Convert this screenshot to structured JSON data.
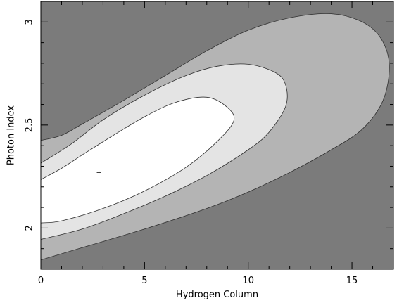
{
  "chart_data": {
    "type": "contour",
    "title": "",
    "xlabel": "Hydrogen Column",
    "ylabel": "Photon Index",
    "xlim": [
      0,
      17
    ],
    "ylim": [
      1.8,
      3.1
    ],
    "x_ticks": [
      0,
      5,
      10,
      15
    ],
    "y_ticks": [
      2,
      2.5,
      3
    ],
    "x_tick_labels": [
      "0",
      "5",
      "10",
      "15"
    ],
    "y_tick_labels": [
      "2",
      "2.5",
      "3"
    ],
    "grid": false,
    "best_fit": {
      "x": 2.8,
      "y": 2.27
    },
    "contours": [
      {
        "level": "outer",
        "fill": "#b4b4b4",
        "points": [
          [
            0,
            1.845
          ],
          [
            2,
            1.905
          ],
          [
            5,
            1.995
          ],
          [
            8,
            2.095
          ],
          [
            10,
            2.175
          ],
          [
            12,
            2.27
          ],
          [
            14,
            2.38
          ],
          [
            15.5,
            2.48
          ],
          [
            16.5,
            2.62
          ],
          [
            16.8,
            2.79
          ],
          [
            16.4,
            2.92
          ],
          [
            15.5,
            3.0
          ],
          [
            14,
            3.04
          ],
          [
            12,
            3.02
          ],
          [
            10,
            2.96
          ],
          [
            8,
            2.86
          ],
          [
            6,
            2.74
          ],
          [
            4,
            2.62
          ],
          [
            2,
            2.505
          ],
          [
            1,
            2.45
          ],
          [
            0,
            2.425
          ]
        ]
      },
      {
        "level": "middle",
        "fill": "#e4e4e4",
        "points": [
          [
            0,
            1.945
          ],
          [
            2,
            1.995
          ],
          [
            4,
            2.07
          ],
          [
            6,
            2.155
          ],
          [
            8,
            2.255
          ],
          [
            10,
            2.38
          ],
          [
            11,
            2.465
          ],
          [
            11.8,
            2.59
          ],
          [
            11.8,
            2.695
          ],
          [
            11.3,
            2.755
          ],
          [
            10,
            2.795
          ],
          [
            8.5,
            2.785
          ],
          [
            7,
            2.74
          ],
          [
            5,
            2.645
          ],
          [
            3,
            2.525
          ],
          [
            1.5,
            2.41
          ],
          [
            0,
            2.315
          ]
        ]
      },
      {
        "level": "inner",
        "fill": "#ffffff",
        "points": [
          [
            0,
            2.025
          ],
          [
            1,
            2.035
          ],
          [
            3,
            2.095
          ],
          [
            5,
            2.18
          ],
          [
            7,
            2.295
          ],
          [
            8.5,
            2.42
          ],
          [
            9.3,
            2.52
          ],
          [
            9.0,
            2.585
          ],
          [
            8,
            2.635
          ],
          [
            6.5,
            2.61
          ],
          [
            5,
            2.54
          ],
          [
            3.5,
            2.45
          ],
          [
            2,
            2.355
          ],
          [
            1,
            2.29
          ],
          [
            0,
            2.235
          ]
        ]
      }
    ]
  },
  "colors": {
    "background": "#7b7b7b",
    "contour_outer": "#b4b4b4",
    "contour_middle": "#e4e4e4",
    "contour_inner": "#ffffff",
    "contour_line": "#303030",
    "axis": "#000000"
  }
}
